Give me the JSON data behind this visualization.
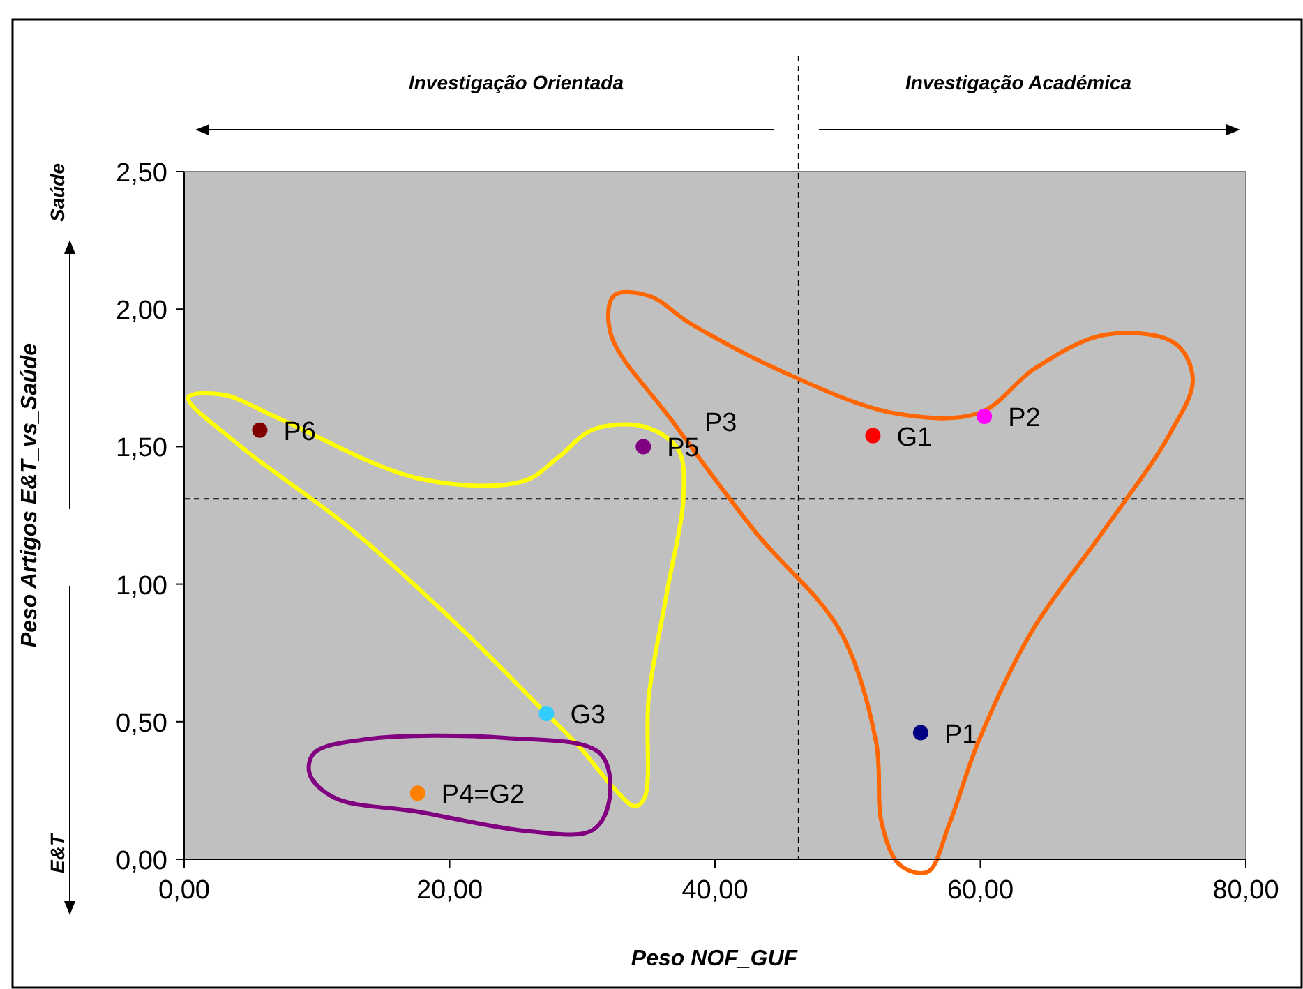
{
  "chart_data": {
    "type": "scatter",
    "xlabel": "Peso NOF_GUF",
    "ylabel": "Peso Artigos E&T_vs_Saúde",
    "xlim": [
      0,
      80
    ],
    "ylim": [
      0,
      2.5
    ],
    "xticks": [
      {
        "value": 0,
        "label": "0,00"
      },
      {
        "value": 20,
        "label": "20,00"
      },
      {
        "value": 40,
        "label": "40,00"
      },
      {
        "value": 60,
        "label": "60,00"
      },
      {
        "value": 80,
        "label": "80,00"
      }
    ],
    "yticks": [
      {
        "value": 0,
        "label": "0,00"
      },
      {
        "value": 0.5,
        "label": "0,50"
      },
      {
        "value": 1,
        "label": "1,00"
      },
      {
        "value": 1.5,
        "label": "1,50"
      },
      {
        "value": 2,
        "label": "2,00"
      },
      {
        "value": 2.5,
        "label": "2,50"
      }
    ],
    "grid": false,
    "marker": "circle",
    "series": [
      {
        "name": "P6",
        "color": "#800000",
        "x": [
          5.7
        ],
        "values": [
          1.56
        ]
      },
      {
        "name": "P5",
        "color": "#800080",
        "x": [
          34.6
        ],
        "values": [
          1.5
        ]
      },
      {
        "name": "G1",
        "color": "#ff0000",
        "x": [
          51.9
        ],
        "values": [
          1.54
        ]
      },
      {
        "name": "P2",
        "color": "#ff00ff",
        "x": [
          60.3
        ],
        "values": [
          1.61
        ]
      },
      {
        "name": "G3",
        "color": "#33ccff",
        "x": [
          27.3
        ],
        "values": [
          0.53
        ]
      },
      {
        "name": "P4=G2",
        "color": "#ff8000",
        "x": [
          17.6
        ],
        "values": [
          0.24
        ]
      },
      {
        "name": "P1",
        "color": "#000080",
        "x": [
          55.5
        ],
        "values": [
          0.46
        ]
      }
    ],
    "ref_lines": [
      {
        "axis": "x",
        "value": 46.3,
        "line_style": "dashed",
        "color": "#000000"
      },
      {
        "axis": "y",
        "value": 1.31,
        "line_style": "dashed",
        "color": "#000000"
      }
    ],
    "annotations": [
      "Investigação Orientada",
      "Investigação Académica",
      "Saúde",
      "E&T",
      "P3"
    ]
  }
}
